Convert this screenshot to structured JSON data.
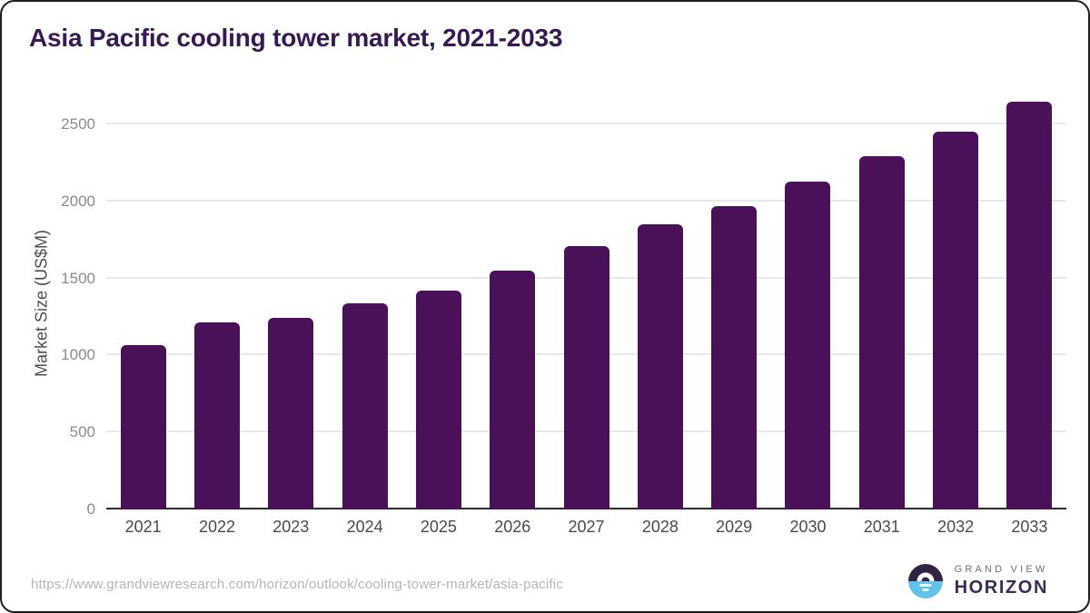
{
  "title": "Asia Pacific cooling tower market, 2021-2033",
  "chart_data": {
    "type": "bar",
    "categories": [
      "2021",
      "2022",
      "2023",
      "2024",
      "2025",
      "2026",
      "2027",
      "2028",
      "2029",
      "2030",
      "2031",
      "2032",
      "2033"
    ],
    "values": [
      1065,
      1212,
      1245,
      1340,
      1420,
      1548,
      1710,
      1852,
      1970,
      2128,
      2295,
      2455,
      2645
    ],
    "title": "Asia Pacific cooling tower market, 2021-2033",
    "xlabel": "",
    "ylabel": "Market Size (US$M)",
    "yticks": [
      0,
      500,
      1000,
      1500,
      2000,
      2500
    ],
    "ylim": [
      0,
      2700
    ],
    "grid": true,
    "legend": "none",
    "bar_color": "#4a1159"
  },
  "colors": {
    "title": "#371a52",
    "gridline": "#e8e8eb",
    "axis_line": "#2d2d2d",
    "y_tick": "#8b8b8b",
    "x_tick": "#4a4a4a",
    "url_text": "#b5b5b5",
    "logo_dark": "#322343",
    "logo_blue": "#64c2e9",
    "logo_horizon_text": "#3b2b55"
  },
  "footer": {
    "source_url": "https://www.grandviewresearch.com/horizon/outlook/cooling-tower-market/asia-pacific",
    "logo": {
      "line1": "GRAND VIEW",
      "line2": "HORIZON"
    }
  }
}
